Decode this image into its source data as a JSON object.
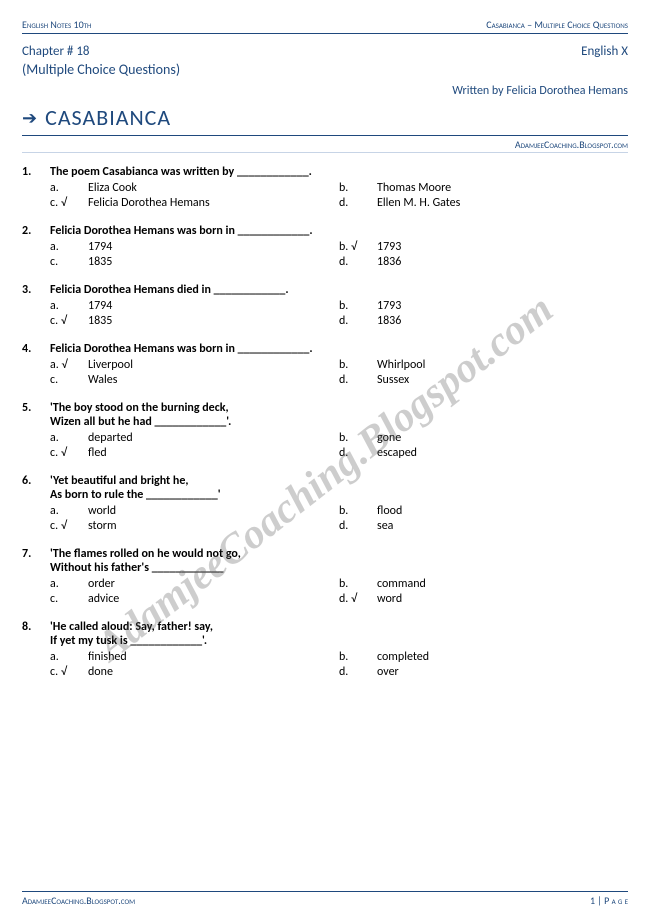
{
  "colors": {
    "accent": "#1f497d",
    "text": "#000000",
    "rule_light": "#c7d4e6",
    "background": "#ffffff",
    "watermark": "rgba(90,90,90,0.30)"
  },
  "header": {
    "left": "English Notes 10th",
    "right": "Casabianca – Multiple Choice Questions"
  },
  "chapter": {
    "label": "Chapter # 18",
    "class": "English X",
    "subtitle": "(Multiple Choice Questions)",
    "author": "Written by Felicia Dorothea Hemans",
    "title": "CASABIANCA",
    "link": "AdamjeeCoaching.Blogspot.com"
  },
  "watermark": "AdamjeeCoaching.Blogspot.com",
  "footer": {
    "left": "AdamjeeCoaching.Blogspot.com",
    "right": "1 | P a g e"
  },
  "check": "√",
  "questions": [
    {
      "n": "1.",
      "text": "The poem Casabianca was written by ____________.",
      "opts": [
        {
          "l": "a.",
          "t": "Eliza Cook",
          "c": false
        },
        {
          "l": "b.",
          "t": "Thomas Moore",
          "c": false
        },
        {
          "l": "c.",
          "t": "Felicia Dorothea Hemans",
          "c": true
        },
        {
          "l": "d.",
          "t": "Ellen M. H. Gates",
          "c": false
        }
      ]
    },
    {
      "n": "2.",
      "text": "Felicia Dorothea Hemans was born in ____________.",
      "opts": [
        {
          "l": "a.",
          "t": "1794",
          "c": false
        },
        {
          "l": "b.",
          "t": "1793",
          "c": true
        },
        {
          "l": "c.",
          "t": "1835",
          "c": false
        },
        {
          "l": "d.",
          "t": "1836",
          "c": false
        }
      ]
    },
    {
      "n": "3.",
      "text": "Felicia Dorothea Hemans died in ____________.",
      "opts": [
        {
          "l": "a.",
          "t": "1794",
          "c": false
        },
        {
          "l": "b.",
          "t": "1793",
          "c": false
        },
        {
          "l": "c.",
          "t": "1835",
          "c": true
        },
        {
          "l": "d.",
          "t": "1836",
          "c": false
        }
      ]
    },
    {
      "n": "4.",
      "text": "Felicia Dorothea Hemans was born in ____________.",
      "opts": [
        {
          "l": "a.",
          "t": "Liverpool",
          "c": true
        },
        {
          "l": "b.",
          "t": "Whirlpool",
          "c": false
        },
        {
          "l": "c.",
          "t": "Wales",
          "c": false
        },
        {
          "l": "d.",
          "t": "Sussex",
          "c": false
        }
      ]
    },
    {
      "n": "5.",
      "text": "'The boy stood on the burning deck,",
      "text2": "Wizen all but he had ____________'.",
      "opts": [
        {
          "l": "a.",
          "t": "departed",
          "c": false
        },
        {
          "l": "b.",
          "t": "gone",
          "c": false
        },
        {
          "l": "c.",
          "t": "fled",
          "c": true
        },
        {
          "l": "d.",
          "t": "escaped",
          "c": false
        }
      ]
    },
    {
      "n": "6.",
      "text": "'Yet beautiful and bright he,",
      "text2": "As born to rule the ____________'",
      "opts": [
        {
          "l": "a.",
          "t": "world",
          "c": false
        },
        {
          "l": "b.",
          "t": "flood",
          "c": false
        },
        {
          "l": "c.",
          "t": "storm",
          "c": true
        },
        {
          "l": "d.",
          "t": "sea",
          "c": false
        }
      ]
    },
    {
      "n": "7.",
      "text": "'The flames rolled on he would not go,",
      "text2": "Without his father's ____________",
      "opts": [
        {
          "l": "a.",
          "t": "order",
          "c": false
        },
        {
          "l": "b.",
          "t": "command",
          "c": false
        },
        {
          "l": "c.",
          "t": "advice",
          "c": false
        },
        {
          "l": "d.",
          "t": "word",
          "c": true
        }
      ]
    },
    {
      "n": "8.",
      "text": "'He called aloud: Say, father! say,",
      "text2": "If yet my tusk is ____________'.",
      "opts": [
        {
          "l": "a.",
          "t": "finished",
          "c": false
        },
        {
          "l": "b.",
          "t": "completed",
          "c": false
        },
        {
          "l": "c.",
          "t": "done",
          "c": true
        },
        {
          "l": "d.",
          "t": "over",
          "c": false
        }
      ]
    }
  ]
}
